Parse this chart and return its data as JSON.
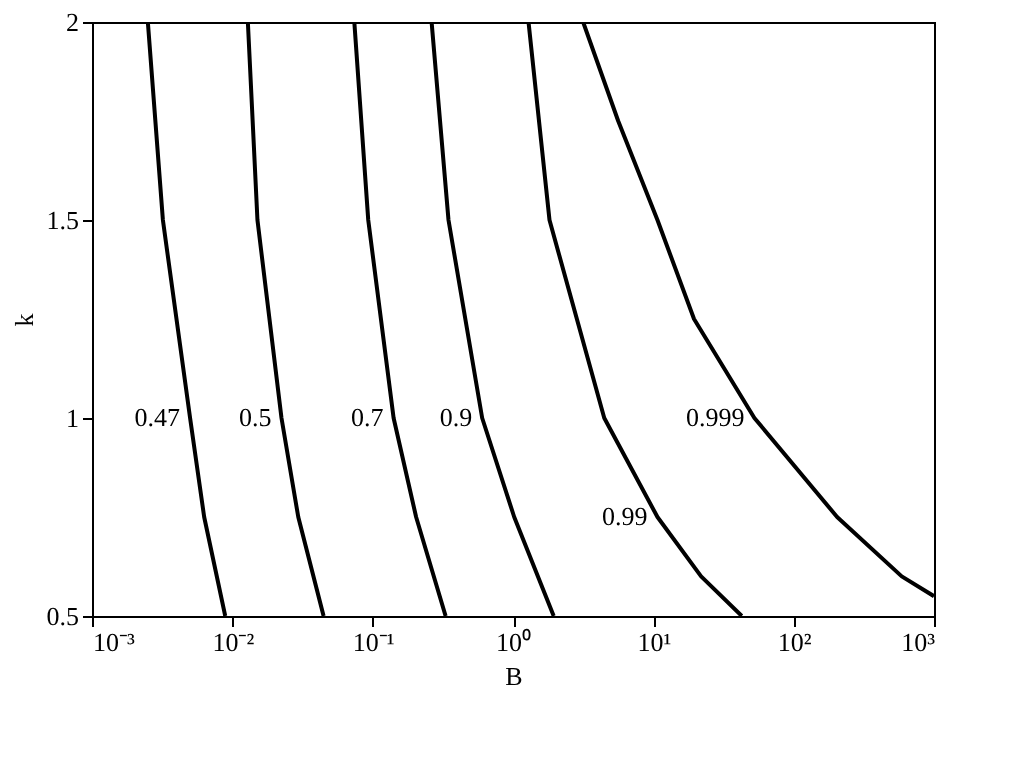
{
  "chart_data": {
    "type": "line",
    "xlabel": "B",
    "ylabel": "k",
    "log": "x",
    "xlim": [
      0.001,
      1000
    ],
    "ylim": [
      0.5,
      2
    ],
    "xticks": [
      {
        "value": 0.001,
        "label": "10⁻³"
      },
      {
        "value": 0.01,
        "label": "10⁻²"
      },
      {
        "value": 0.1,
        "label": "10⁻¹"
      },
      {
        "value": 1,
        "label": "10⁰"
      },
      {
        "value": 10,
        "label": "10¹"
      },
      {
        "value": 100,
        "label": "10²"
      },
      {
        "value": 1000,
        "label": "10³"
      }
    ],
    "yticks": [
      0.5,
      1,
      1.5,
      2
    ],
    "grid": false,
    "marker": "none",
    "line_style": "solid",
    "series": [
      {
        "name": "0.47",
        "color": "#000000",
        "x": [
          0.0025,
          0.0032,
          0.005,
          0.0063,
          0.0089
        ],
        "values": [
          2,
          1.5,
          1,
          0.75,
          0.5
        ]
      },
      {
        "name": "0.5",
        "color": "#000000",
        "x": [
          0.0129,
          0.0151,
          0.0224,
          0.0295,
          0.0447
        ],
        "values": [
          2,
          1.5,
          1,
          0.75,
          0.5
        ]
      },
      {
        "name": "0.7",
        "color": "#000000",
        "x": [
          0.074,
          0.093,
          0.141,
          0.204,
          0.331
        ],
        "values": [
          2,
          1.5,
          1,
          0.75,
          0.5
        ]
      },
      {
        "name": "0.9",
        "color": "#000000",
        "x": [
          0.263,
          0.347,
          0.603,
          1.02,
          1.95
        ],
        "values": [
          2,
          1.5,
          1,
          0.75,
          0.5
        ]
      },
      {
        "name": "0.99",
        "color": "#000000",
        "x": [
          1.29,
          1.82,
          4.47,
          10.7,
          21.9,
          42.7
        ],
        "values": [
          2,
          1.5,
          1,
          0.75,
          0.6,
          0.5
        ]
      },
      {
        "name": "0.999",
        "color": "#000000",
        "x": [
          3.16,
          5.62,
          10.7,
          19.5,
          52.5,
          204,
          589,
          1000
        ],
        "values": [
          2,
          1.75,
          1.5,
          1.25,
          1,
          0.75,
          0.6,
          0.55
        ]
      }
    ]
  }
}
